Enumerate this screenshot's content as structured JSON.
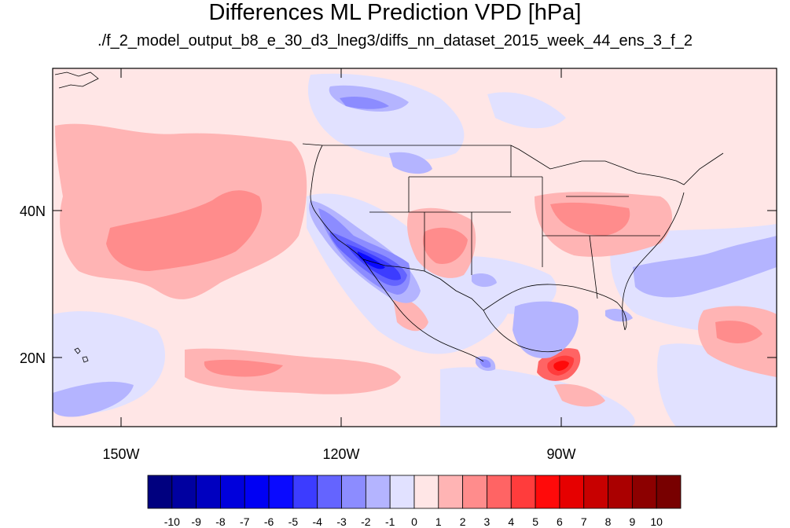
{
  "title": "Differences ML Prediction VPD [hPa]",
  "subtitle": "./f_2_model_output_b8_e_30_d3_lneg3/diffs_nn_dataset_2015_week_44_ens_3_f_2",
  "map": {
    "lon_labels": [
      "150W",
      "120W",
      "90W"
    ],
    "lat_labels": [
      "40N",
      "20N"
    ],
    "background_level": "0 to 1 (light pink)"
  },
  "colorbar": {
    "labels": [
      "-10",
      "-9",
      "-8",
      "-7",
      "-6",
      "-5",
      "-4",
      "-3",
      "-2",
      "-1",
      "0",
      "1",
      "2",
      "3",
      "4",
      "5",
      "6",
      "7",
      "8",
      "9",
      "10"
    ],
    "colors": [
      "#00007f",
      "#0000a0",
      "#0000c0",
      "#0000dc",
      "#0000f4",
      "#0a0aff",
      "#3c3cff",
      "#6464ff",
      "#8c8cff",
      "#b4b4ff",
      "#e1e1ff",
      "#ffe6e6",
      "#ffb4b4",
      "#ff8c8c",
      "#ff6464",
      "#ff3c3c",
      "#ff0a0a",
      "#e60000",
      "#c80000",
      "#aa0000",
      "#8c0000",
      "#780000"
    ]
  }
}
